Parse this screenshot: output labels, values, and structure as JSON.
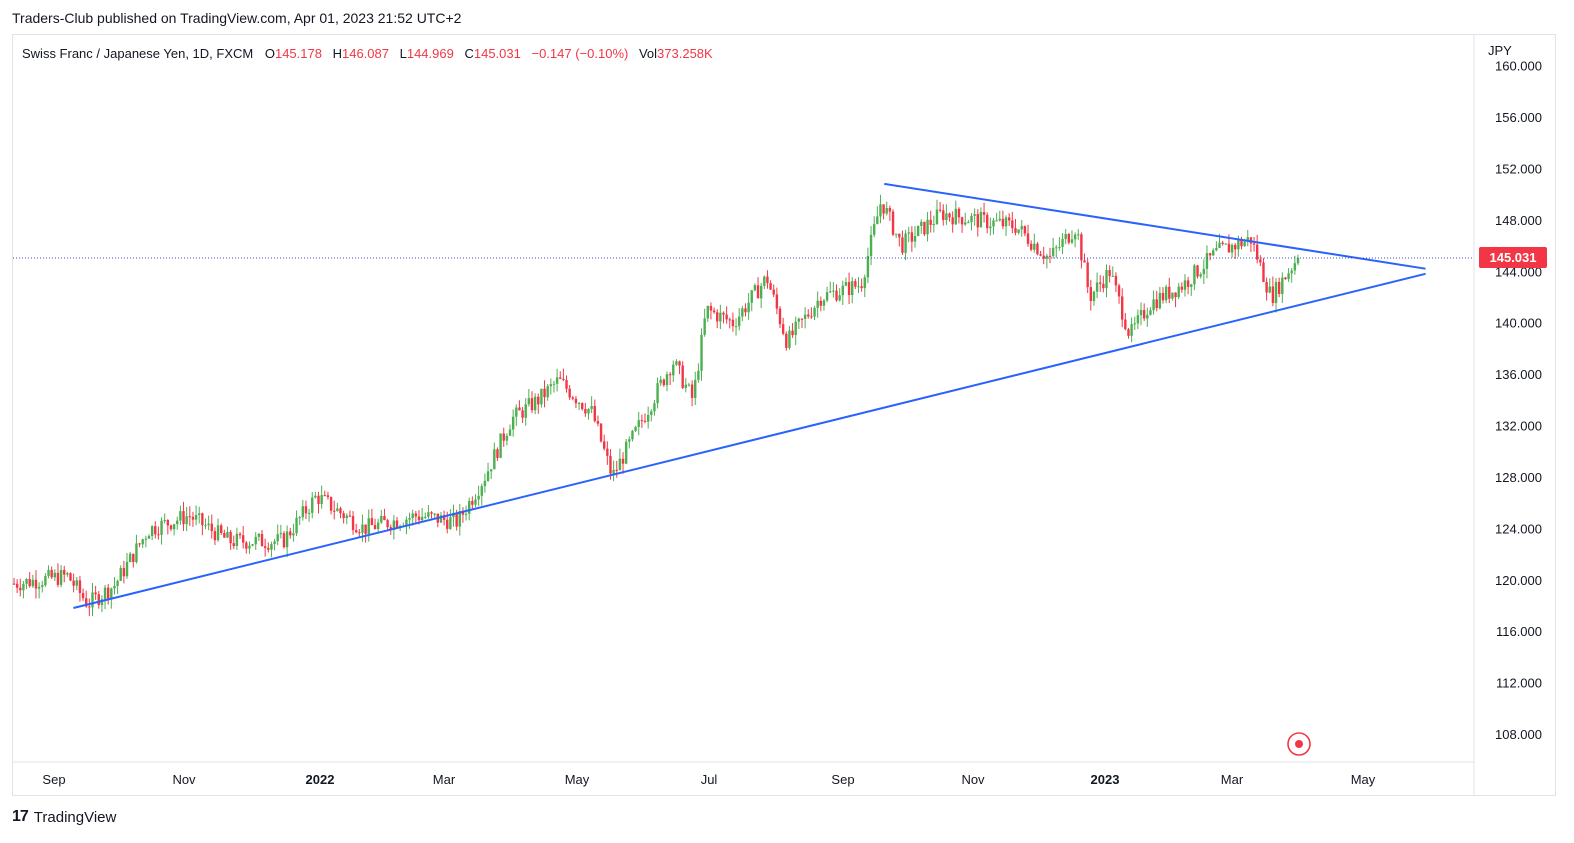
{
  "publisher": "Traders-Club published on TradingView.com, Apr 01, 2023 21:52 UTC+2",
  "footer": {
    "brand": "TradingView",
    "logo_text": "17"
  },
  "legend": {
    "symbol": "Swiss Franc / Japanese Yen, 1D, FXCM",
    "o_label": "O",
    "o_value": "145.178",
    "h_label": "H",
    "h_value": "146.087",
    "l_label": "L",
    "l_value": "144.969",
    "c_label": "C",
    "c_value": "145.031",
    "change": "−0.147 (−0.10%)",
    "vol_label": "Vol",
    "vol_value": "373.258K"
  },
  "axis": {
    "currency": "JPY"
  },
  "last_price_label": "145.031",
  "colors": {
    "up": "#4caf50",
    "down": "#f23645",
    "trendline": "#2962ff",
    "grid_text": "#131722"
  },
  "chart_data": {
    "type": "candlestick",
    "title": "Swiss Franc / Japanese Yen, 1D, FXCM",
    "ylabel": "JPY",
    "ylim": [
      106.5,
      160.0
    ],
    "y_ticks": [
      "108.000",
      "112.000",
      "116.000",
      "120.000",
      "124.000",
      "128.000",
      "132.000",
      "136.000",
      "140.000",
      "144.000",
      "148.000",
      "152.000",
      "156.000",
      "160.000"
    ],
    "x_ticks": [
      {
        "label": "Sep",
        "bold": false
      },
      {
        "label": "Nov",
        "bold": false
      },
      {
        "label": "2022",
        "bold": true
      },
      {
        "label": "Mar",
        "bold": false
      },
      {
        "label": "May",
        "bold": false
      },
      {
        "label": "Jul",
        "bold": false
      },
      {
        "label": "Sep",
        "bold": false
      },
      {
        "label": "Nov",
        "bold": false
      },
      {
        "label": "2023",
        "bold": true
      },
      {
        "label": "Mar",
        "bold": false
      },
      {
        "label": "May",
        "bold": false
      }
    ],
    "last_close": 145.031,
    "price_path_anchors": [
      [
        0,
        119.7
      ],
      [
        0.04,
        120.3
      ],
      [
        0.055,
        118.1
      ],
      [
        0.075,
        119.6
      ],
      [
        0.1,
        123.9
      ],
      [
        0.13,
        125.0
      ],
      [
        0.16,
        123.0
      ],
      [
        0.2,
        123.0
      ],
      [
        0.225,
        126.5
      ],
      [
        0.26,
        124.0
      ],
      [
        0.3,
        125.0
      ],
      [
        0.33,
        124.5
      ],
      [
        0.35,
        128.0
      ],
      [
        0.37,
        132.5
      ],
      [
        0.39,
        134.0
      ],
      [
        0.405,
        135.5
      ],
      [
        0.43,
        133.0
      ],
      [
        0.445,
        128.0
      ],
      [
        0.465,
        132.0
      ],
      [
        0.49,
        137.0
      ],
      [
        0.505,
        134.0
      ],
      [
        0.515,
        141.0
      ],
      [
        0.535,
        140.0
      ],
      [
        0.56,
        143.5
      ],
      [
        0.575,
        138.5
      ],
      [
        0.6,
        142.0
      ],
      [
        0.63,
        143.0
      ],
      [
        0.645,
        149.5
      ],
      [
        0.66,
        146.0
      ],
      [
        0.69,
        148.5
      ],
      [
        0.715,
        148.0
      ],
      [
        0.745,
        147.5
      ],
      [
        0.77,
        145.0
      ],
      [
        0.79,
        147.5
      ],
      [
        0.8,
        142.0
      ],
      [
        0.815,
        144.0
      ],
      [
        0.83,
        139.0
      ],
      [
        0.845,
        141.5
      ],
      [
        0.87,
        143.0
      ],
      [
        0.895,
        145.5
      ],
      [
        0.92,
        146.5
      ],
      [
        0.935,
        142.0
      ],
      [
        0.955,
        145.1
      ]
    ],
    "trendlines": [
      {
        "name": "support-long",
        "from": {
          "date": "2021-09-10",
          "price": 117.8
        },
        "to": {
          "date": "2023-05-30",
          "price": 143.8
        }
      },
      {
        "name": "resistance",
        "from": {
          "date": "2022-09-21",
          "price": 150.8
        },
        "to": {
          "date": "2023-05-30",
          "price": 144.2
        }
      }
    ]
  }
}
